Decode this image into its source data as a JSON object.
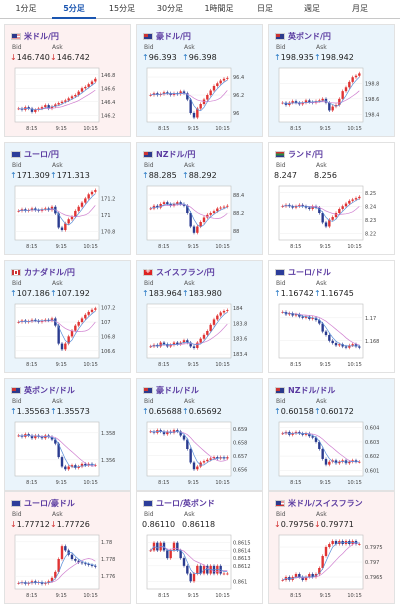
{
  "tabs": [
    "1分足",
    "5分足",
    "15分足",
    "30分足",
    "1時間足",
    "日足",
    "週足",
    "月足"
  ],
  "active_tab": 1,
  "labels": {
    "bid": "Bid",
    "ask": "Ask"
  },
  "colors": {
    "up_bg": "#eaf4fb",
    "down_bg": "#fdf1f1",
    "candle_up": "#e03333",
    "candle_down": "#2a3b8f",
    "ma_short": "#d080d0",
    "ma_long": "#5a8fd8"
  },
  "pairs": [
    {
      "name": "米ドル/円",
      "flag": "us",
      "direction": "down",
      "bid_arrow": "↓",
      "bid": "146.740",
      "ask_arrow": "↓",
      "ask": "146.742",
      "x_ticks": [
        "8:15",
        "9:15",
        "10:15"
      ],
      "y_ticks": [
        "146.8",
        "146.6",
        "146.4",
        "146.2"
      ],
      "ylim": [
        146.1,
        146.9
      ],
      "closes": [
        146.3,
        146.28,
        146.32,
        146.3,
        146.25,
        146.28,
        146.3,
        146.32,
        146.35,
        146.3,
        146.33,
        146.36,
        146.38,
        146.4,
        146.42,
        146.45,
        146.48,
        146.5,
        146.55,
        146.6,
        146.62,
        146.66,
        146.7,
        146.74
      ]
    },
    {
      "name": "豪ドル/円",
      "flag": "au",
      "direction": "up",
      "bid_arrow": "↑",
      "bid": "96.393",
      "ask_arrow": "↑",
      "ask": "96.398",
      "x_ticks": [
        "8:15",
        "9:15",
        "10:15"
      ],
      "y_ticks": [
        "96.4",
        "96.2",
        "96"
      ],
      "ylim": [
        95.9,
        96.5
      ],
      "closes": [
        96.2,
        96.22,
        96.2,
        96.21,
        96.23,
        96.22,
        96.2,
        96.22,
        96.21,
        96.24,
        96.22,
        96.15,
        96.0,
        95.95,
        96.05,
        96.1,
        96.15,
        96.2,
        96.25,
        96.3,
        96.33,
        96.36,
        96.38,
        96.39
      ]
    },
    {
      "name": "英ポンド/円",
      "flag": "gb",
      "direction": "up",
      "bid_arrow": "↑",
      "bid": "198.935",
      "ask_arrow": "↑",
      "ask": "198.942",
      "x_ticks": [
        "8:15",
        "9:15",
        "10:15"
      ],
      "y_ticks": [
        "198.8",
        "198.6",
        "198.4"
      ],
      "ylim": [
        198.3,
        199.0
      ],
      "closes": [
        198.55,
        198.52,
        198.55,
        198.57,
        198.55,
        198.53,
        198.55,
        198.58,
        198.56,
        198.55,
        198.57,
        198.58,
        198.6,
        198.55,
        198.45,
        198.5,
        198.52,
        198.6,
        198.7,
        198.75,
        198.82,
        198.88,
        198.9,
        198.93
      ]
    },
    {
      "name": "ユーロ/円",
      "flag": "eu",
      "direction": "up",
      "bid_arrow": "↑",
      "bid": "171.309",
      "ask_arrow": "↑",
      "ask": "171.313",
      "x_ticks": [
        "8:15",
        "9:15",
        "10:15"
      ],
      "y_ticks": [
        "171.2",
        "171",
        "170.8"
      ],
      "ylim": [
        170.7,
        171.35
      ],
      "closes": [
        171.05,
        171.07,
        171.05,
        171.06,
        171.08,
        171.06,
        171.05,
        171.07,
        171.08,
        171.06,
        171.1,
        171.02,
        170.85,
        170.82,
        170.9,
        170.95,
        170.98,
        171.05,
        171.1,
        171.15,
        171.2,
        171.25,
        171.28,
        171.3
      ]
    },
    {
      "name": "NZドル/円",
      "flag": "nz",
      "direction": "up",
      "bid_arrow": "↑",
      "bid": "88.285",
      "ask_arrow": "↑",
      "ask": "88.292",
      "x_ticks": [
        "8:15",
        "9:15",
        "10:15"
      ],
      "y_ticks": [
        "88.4",
        "88.2",
        "88"
      ],
      "ylim": [
        87.9,
        88.5
      ],
      "closes": [
        88.25,
        88.28,
        88.26,
        88.3,
        88.32,
        88.3,
        88.28,
        88.3,
        88.32,
        88.3,
        88.28,
        88.2,
        88.05,
        87.98,
        88.05,
        88.1,
        88.15,
        88.18,
        88.2,
        88.22,
        88.25,
        88.26,
        88.27,
        88.28
      ]
    },
    {
      "name": "ランド/円",
      "flag": "za",
      "direction": "flat",
      "bid_arrow": "",
      "bid": "8.247",
      "ask_arrow": "",
      "ask": "8.256",
      "x_ticks": [
        "8:15",
        "9:15",
        "10:15"
      ],
      "y_ticks": [
        "8.25",
        "8.24",
        "8.23",
        "8.22"
      ],
      "ylim": [
        8.215,
        8.255
      ],
      "closes": [
        8.24,
        8.241,
        8.24,
        8.239,
        8.24,
        8.241,
        8.24,
        8.239,
        8.238,
        8.24,
        8.239,
        8.235,
        8.228,
        8.225,
        8.23,
        8.232,
        8.235,
        8.238,
        8.24,
        8.242,
        8.244,
        8.245,
        8.246,
        8.247
      ]
    },
    {
      "name": "カナダドル/円",
      "flag": "ca",
      "direction": "up",
      "bid_arrow": "↑",
      "bid": "107.186",
      "ask_arrow": "↑",
      "ask": "107.192",
      "x_ticks": [
        "8:15",
        "9:15",
        "10:15"
      ],
      "y_ticks": [
        "107.2",
        "107",
        "106.8",
        "106.6"
      ],
      "ylim": [
        106.5,
        107.25
      ],
      "closes": [
        107.0,
        107.02,
        107.0,
        107.01,
        107.03,
        107.02,
        107.0,
        107.02,
        107.03,
        107.02,
        107.05,
        106.95,
        106.7,
        106.62,
        106.7,
        106.8,
        106.88,
        106.95,
        107.0,
        107.05,
        107.1,
        107.14,
        107.17,
        107.19
      ]
    },
    {
      "name": "スイスフラン/円",
      "flag": "ch",
      "direction": "up",
      "bid_arrow": "↑",
      "bid": "183.964",
      "ask_arrow": "↑",
      "ask": "183.980",
      "x_ticks": [
        "8:15",
        "9:15",
        "10:15"
      ],
      "y_ticks": [
        "184",
        "183.8",
        "183.6",
        "183.4"
      ],
      "ylim": [
        183.35,
        184.05
      ],
      "closes": [
        183.5,
        183.52,
        183.5,
        183.55,
        183.53,
        183.5,
        183.52,
        183.55,
        183.53,
        183.55,
        183.58,
        183.55,
        183.5,
        183.48,
        183.55,
        183.6,
        183.65,
        183.7,
        183.78,
        183.85,
        183.9,
        183.94,
        183.96,
        183.97
      ]
    },
    {
      "name": "ユーロ/ドル",
      "flag": "eu",
      "direction": "flat",
      "bid_arrow": "↑",
      "bid": "1.16742",
      "ask_arrow": "↑",
      "ask": "1.16745",
      "x_ticks": [
        "8:15",
        "9:15",
        "10:15"
      ],
      "y_ticks": [
        "1.17",
        "1.168"
      ],
      "ylim": [
        1.1665,
        1.1712
      ],
      "closes": [
        1.1705,
        1.1703,
        1.1704,
        1.1702,
        1.1703,
        1.1701,
        1.17,
        1.1701,
        1.1699,
        1.17,
        1.1698,
        1.1695,
        1.1688,
        1.1685,
        1.168,
        1.1678,
        1.1676,
        1.1677,
        1.1675,
        1.1674,
        1.1676,
        1.1677,
        1.1675,
        1.1674
      ]
    },
    {
      "name": "英ポンド/ドル",
      "flag": "gb",
      "direction": "up",
      "bid_arrow": "↑",
      "bid": "1.35563",
      "ask_arrow": "↑",
      "ask": "1.35573",
      "x_ticks": [
        "8:15",
        "9:15",
        "10:15"
      ],
      "y_ticks": [
        "1.358",
        "1.356"
      ],
      "ylim": [
        1.3548,
        1.3588
      ],
      "closes": [
        1.3578,
        1.3577,
        1.3579,
        1.3578,
        1.3576,
        1.3578,
        1.3577,
        1.3576,
        1.3578,
        1.3577,
        1.3575,
        1.3572,
        1.3562,
        1.3555,
        1.3553,
        1.3555,
        1.3556,
        1.3554,
        1.3555,
        1.3557,
        1.3556,
        1.3557,
        1.3556,
        1.3556
      ]
    },
    {
      "name": "豪ドル/ドル",
      "flag": "au",
      "direction": "up",
      "bid_arrow": "↑",
      "bid": "0.65688",
      "ask_arrow": "↑",
      "ask": "0.65692",
      "x_ticks": [
        "8:15",
        "9:15",
        "10:15"
      ],
      "y_ticks": [
        "0.659",
        "0.658",
        "0.657",
        "0.656"
      ],
      "ylim": [
        0.6555,
        0.6595
      ],
      "closes": [
        0.6588,
        0.6587,
        0.6589,
        0.6588,
        0.6586,
        0.6588,
        0.6587,
        0.6589,
        0.6588,
        0.6585,
        0.6582,
        0.6575,
        0.6565,
        0.656,
        0.6562,
        0.6565,
        0.6566,
        0.6567,
        0.6568,
        0.6569,
        0.6568,
        0.6569,
        0.6568,
        0.6569
      ]
    },
    {
      "name": "NZドル/ドル",
      "flag": "nz",
      "direction": "up",
      "bid_arrow": "↑",
      "bid": "0.60158",
      "ask_arrow": "↑",
      "ask": "0.60172",
      "x_ticks": [
        "8:15",
        "9:15",
        "10:15"
      ],
      "y_ticks": [
        "0.604",
        "0.603",
        "0.602",
        "0.601"
      ],
      "ylim": [
        0.6006,
        0.6044
      ],
      "closes": [
        0.6036,
        0.6037,
        0.6035,
        0.6036,
        0.6037,
        0.6036,
        0.6035,
        0.6036,
        0.6034,
        0.6033,
        0.603,
        0.6025,
        0.6018,
        0.6014,
        0.6016,
        0.6017,
        0.6015,
        0.6016,
        0.6017,
        0.6015,
        0.6016,
        0.6017,
        0.6016,
        0.6016
      ]
    },
    {
      "name": "ユーロ/豪ドル",
      "flag": "eu",
      "direction": "down",
      "bid_arrow": "↓",
      "bid": "1.77712",
      "ask_arrow": "↓",
      "ask": "1.77726",
      "x_ticks": [
        "8:15",
        "9:15",
        "10:15"
      ],
      "y_ticks": [
        "1.78",
        "1.778",
        "1.776"
      ],
      "ylim": [
        1.7745,
        1.7808
      ],
      "closes": [
        1.7752,
        1.7753,
        1.7751,
        1.7752,
        1.7754,
        1.7752,
        1.7753,
        1.7751,
        1.7752,
        1.7754,
        1.7758,
        1.7765,
        1.778,
        1.7795,
        1.779,
        1.7785,
        1.778,
        1.7778,
        1.7776,
        1.7775,
        1.7774,
        1.7773,
        1.7772,
        1.7771
      ]
    },
    {
      "name": "ユーロ/英ポンド",
      "flag": "eu",
      "direction": "flat",
      "bid_arrow": "",
      "bid": "0.86110",
      "ask_arrow": "",
      "ask": "0.86118",
      "x_ticks": [
        "8:15",
        "9:15",
        "10:15"
      ],
      "y_ticks": [
        "0.8615",
        "0.8614",
        "0.8613",
        "0.8612",
        "0.861"
      ],
      "ylim": [
        0.8609,
        0.8616
      ],
      "closes": [
        0.8614,
        0.8615,
        0.8614,
        0.8615,
        0.8614,
        0.8613,
        0.8614,
        0.8615,
        0.8614,
        0.8613,
        0.8612,
        0.8611,
        0.861,
        0.8611,
        0.8612,
        0.8611,
        0.8612,
        0.8611,
        0.8612,
        0.8611,
        0.8612,
        0.8611,
        0.8611,
        0.8611
      ]
    },
    {
      "name": "米ドル/スイスフラン",
      "flag": "us",
      "direction": "down",
      "bid_arrow": "↓",
      "bid": "0.79756",
      "ask_arrow": "↓",
      "ask": "0.79771",
      "x_ticks": [
        "8:15",
        "9:15",
        "10:15"
      ],
      "y_ticks": [
        "0.7975",
        "0.797",
        "0.7965"
      ],
      "ylim": [
        0.7961,
        0.7979
      ],
      "closes": [
        0.7964,
        0.7965,
        0.7964,
        0.7965,
        0.7966,
        0.7965,
        0.7964,
        0.7965,
        0.7966,
        0.7965,
        0.7966,
        0.7968,
        0.7972,
        0.7975,
        0.7976,
        0.7977,
        0.7976,
        0.7977,
        0.7976,
        0.7977,
        0.7976,
        0.7977,
        0.7976,
        0.7976
      ]
    }
  ]
}
